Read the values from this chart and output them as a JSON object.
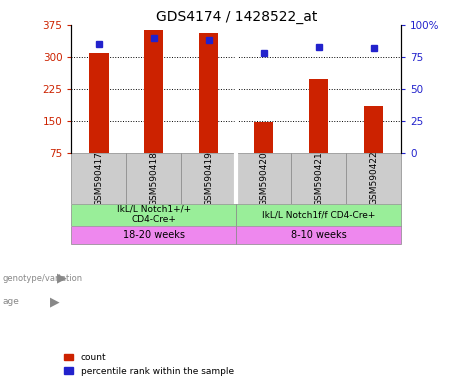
{
  "title": "GDS4174 / 1428522_at",
  "samples": [
    "GSM590417",
    "GSM590418",
    "GSM590419",
    "GSM590420",
    "GSM590421",
    "GSM590422"
  ],
  "counts": [
    308,
    362,
    355,
    148,
    248,
    185
  ],
  "percentiles": [
    85,
    90,
    88,
    78,
    83,
    82
  ],
  "ylim_left": [
    75,
    375
  ],
  "ylim_right": [
    0,
    100
  ],
  "yticks_left": [
    75,
    150,
    225,
    300,
    375
  ],
  "yticks_right": [
    0,
    25,
    50,
    75,
    100
  ],
  "ytick_labels_right": [
    "0",
    "25",
    "50",
    "75",
    "100%"
  ],
  "bar_color": "#cc2200",
  "dot_color": "#2222cc",
  "genotype1": "IkL/L Notch1+/+\nCD4-Cre+",
  "genotype2": "IkL/L Notch1f/f CD4-Cre+",
  "age1": "18-20 weeks",
  "age2": "8-10 weeks",
  "genotype_color": "#99ee99",
  "age_color": "#ee88ee",
  "tick_label_color_left": "#cc2200",
  "tick_label_color_right": "#2222cc",
  "sample_bg_color": "#cccccc",
  "divider_color": "#ffffff",
  "border_color": "#888888"
}
